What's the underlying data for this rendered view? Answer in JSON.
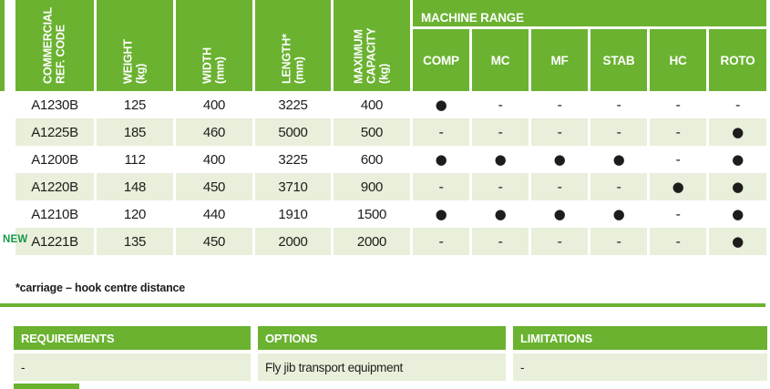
{
  "colors": {
    "brand_green": "#6ab230",
    "row_stripe": "#e8efda",
    "text_dark": "#1d1d1b",
    "new_badge_green": "#149a4c",
    "header_text": "#ffffff",
    "dot": "#111111"
  },
  "spec_table": {
    "columns": [
      {
        "lines": [
          "COMMERCIAL",
          "REF. CODE"
        ]
      },
      {
        "lines": [
          "WEIGHT",
          "(kg)"
        ]
      },
      {
        "lines": [
          "WIDTH",
          "(mm)"
        ]
      },
      {
        "lines": [
          "LENGTH*",
          "(mm)"
        ]
      },
      {
        "lines": [
          "MAXIMUM",
          "CAPACITY",
          "(kg)"
        ]
      }
    ],
    "machine_range": {
      "title": "MACHINE RANGE",
      "columns": [
        "COMP",
        "MC",
        "MF",
        "STAB",
        "HC",
        "ROTO"
      ]
    },
    "rows": [
      {
        "badge": "",
        "cells": [
          "A1230B",
          "125",
          "400",
          "3225",
          "400",
          "●",
          "-",
          "-",
          "-",
          "-",
          "-"
        ]
      },
      {
        "badge": "",
        "cells": [
          "A1225B",
          "185",
          "460",
          "5000",
          "500",
          "-",
          "-",
          "-",
          "-",
          "-",
          "●"
        ]
      },
      {
        "badge": "",
        "cells": [
          "A1200B",
          "112",
          "400",
          "3225",
          "600",
          "●",
          "●",
          "●",
          "●",
          "-",
          "●"
        ]
      },
      {
        "badge": "",
        "cells": [
          "A1220B",
          "148",
          "450",
          "3710",
          "900",
          "-",
          "-",
          "-",
          "-",
          "●",
          "●"
        ]
      },
      {
        "badge": "",
        "cells": [
          "A1210B",
          "120",
          "440",
          "1910",
          "1500",
          "●",
          "●",
          "●",
          "●",
          "-",
          "●"
        ]
      },
      {
        "badge": "NEW",
        "cells": [
          "A1221B",
          "135",
          "450",
          "2000",
          "2000",
          "-",
          "-",
          "-",
          "-",
          "-",
          "●"
        ]
      }
    ],
    "footnote": "*carriage – hook centre distance"
  },
  "info_table": {
    "columns": [
      {
        "header": "REQUIREMENTS",
        "value": "-"
      },
      {
        "header": "OPTIONS",
        "value": "Fly jib transport equipment"
      },
      {
        "header": "LIMITATIONS",
        "value": "-"
      }
    ]
  }
}
